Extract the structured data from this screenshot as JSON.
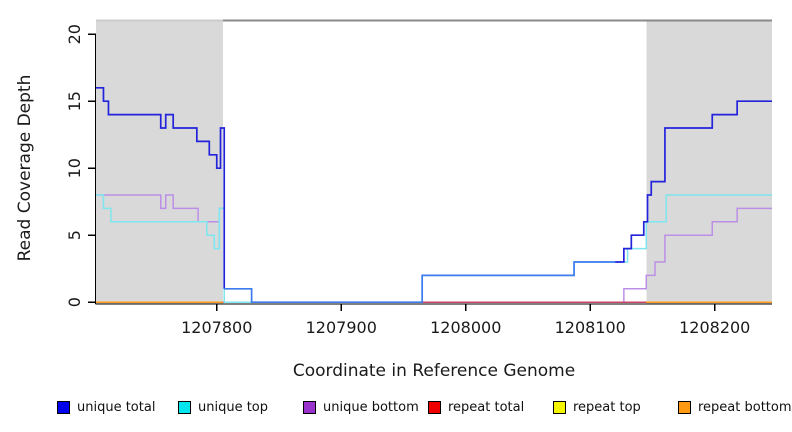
{
  "chart_data": {
    "type": "line",
    "subtype": "step-after-coverage",
    "title": "",
    "xlabel": "Coordinate in Reference Genome",
    "ylabel": "Read Coverage Depth",
    "xlim": [
      1207703,
      1208246
    ],
    "ylim": [
      0,
      20.5
    ],
    "x_ticks": [
      1207800,
      1207900,
      1208000,
      1208100,
      1208200
    ],
    "y_ticks": [
      0,
      5,
      10,
      15,
      20
    ],
    "grid": false,
    "legend_position": "bottom",
    "shaded_regions": [
      {
        "from": 1207703,
        "to": 1207805
      },
      {
        "from": 1208145,
        "to": 1208246
      }
    ],
    "x_end": 1208246,
    "series": [
      {
        "name": "unique total",
        "color": "#2323dc",
        "color_unmasked": "#3e7bee",
        "points": [
          [
            1207703,
            16
          ],
          [
            1207709,
            15
          ],
          [
            1207713,
            14
          ],
          [
            1207755,
            13
          ],
          [
            1207759,
            14
          ],
          [
            1207765,
            13
          ],
          [
            1207784,
            12
          ],
          [
            1207794,
            11
          ],
          [
            1207800,
            10
          ],
          [
            1207803,
            13
          ],
          [
            1207806,
            1
          ],
          [
            1207828,
            0
          ],
          [
            1207965,
            2
          ],
          [
            1208087,
            3
          ],
          [
            1208127,
            4
          ],
          [
            1208133,
            5
          ],
          [
            1208143,
            6
          ],
          [
            1208146,
            8
          ],
          [
            1208149,
            9
          ],
          [
            1208160,
            13
          ],
          [
            1208198,
            14
          ],
          [
            1208218,
            15
          ]
        ]
      },
      {
        "name": "unique top",
        "color": "#7de6ee",
        "points": [
          [
            1207703,
            8
          ],
          [
            1207709,
            7
          ],
          [
            1207715,
            6
          ],
          [
            1207792,
            5
          ],
          [
            1207798,
            4
          ],
          [
            1207802,
            7
          ],
          [
            1207806,
            0
          ],
          [
            1207965,
            2
          ],
          [
            1208087,
            3
          ],
          [
            1208130,
            4
          ],
          [
            1208145,
            6
          ],
          [
            1208161,
            8
          ]
        ]
      },
      {
        "name": "unique bottom",
        "color": "#bc8fe6",
        "points": [
          [
            1207703,
            8
          ],
          [
            1207755,
            7
          ],
          [
            1207759,
            8
          ],
          [
            1207765,
            7
          ],
          [
            1207785,
            6
          ],
          [
            1207802,
            7
          ],
          [
            1207806,
            0
          ],
          [
            1208127,
            1
          ],
          [
            1208145,
            2
          ],
          [
            1208152,
            3
          ],
          [
            1208160,
            5
          ],
          [
            1208198,
            6
          ],
          [
            1208218,
            7
          ]
        ]
      },
      {
        "name": "repeat total",
        "color": "#cc4466",
        "points": [
          [
            1207703,
            0
          ]
        ]
      },
      {
        "name": "repeat top",
        "color": "#f0f000",
        "points": [
          [
            1207703,
            0
          ]
        ]
      },
      {
        "name": "repeat bottom",
        "color": "#ff9d1e",
        "points": [
          [
            1207703,
            0
          ]
        ]
      }
    ],
    "masked_region_color": "#d9d9d9"
  },
  "legend": {
    "items": [
      {
        "label": "unique total",
        "swatch": "#0000ee"
      },
      {
        "label": "unique top",
        "swatch": "#00e6ee"
      },
      {
        "label": "unique bottom",
        "swatch": "#9a32cd"
      },
      {
        "label": "repeat total",
        "swatch": "#ee0000"
      },
      {
        "label": "repeat top",
        "swatch": "#f5f500"
      },
      {
        "label": "repeat bottom",
        "swatch": "#ff9912"
      }
    ]
  }
}
